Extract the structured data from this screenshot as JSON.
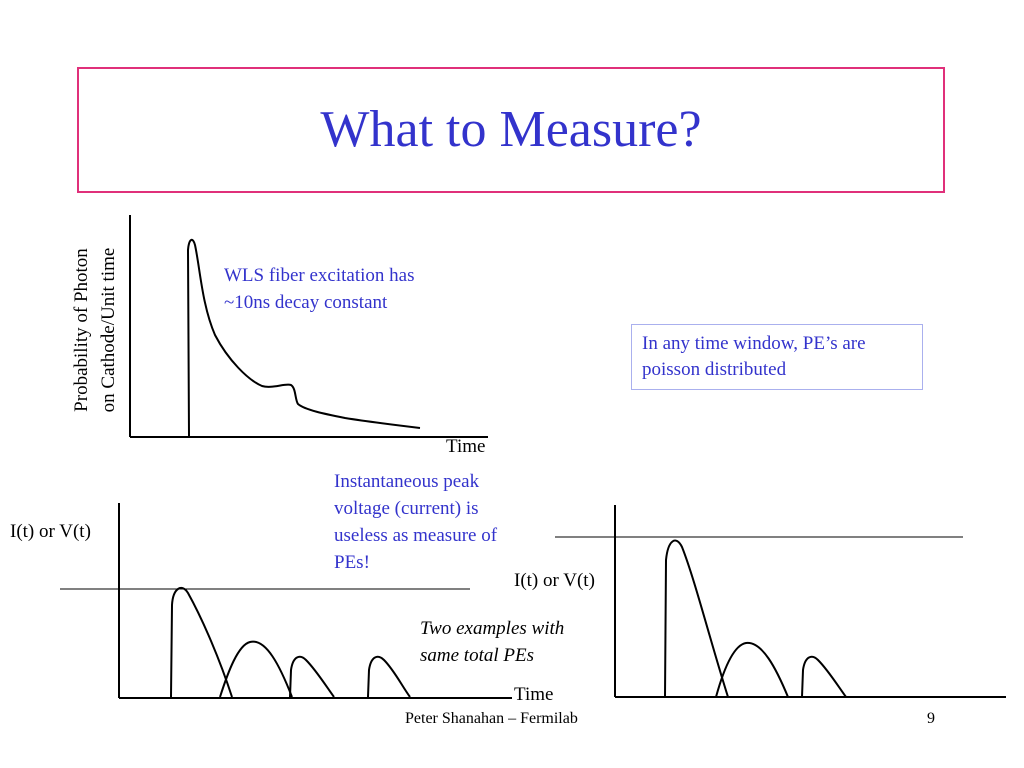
{
  "slide": {
    "title": "What to Measure?",
    "footer_author": "Peter Shanahan – Fermilab",
    "page_number": "9"
  },
  "top_plot": {
    "y_label_line1": "Probability of Photon",
    "y_label_line2": "on Cathode/Unit time",
    "x_label": "Time",
    "note_line1": "WLS fiber excitation has",
    "note_line2": "~10ns decay constant"
  },
  "callout": {
    "line1": "In any time window, PE’s are",
    "line2": "poisson distributed"
  },
  "peak_note": {
    "line1": "Instantaneous peak",
    "line2": "voltage (current) is",
    "line3": "useless as measure of",
    "line4": "PEs!"
  },
  "examples_note": {
    "line1": "Two examples with",
    "line2": "same total PEs"
  },
  "left_plot": {
    "y_label": "I(t) or V(t)",
    "x_label": "Time"
  },
  "right_plot": {
    "y_label": "I(t) or V(t)"
  },
  "colors": {
    "title": "#3333cc",
    "title_border": "#e0307a",
    "annotation": "#3333cc",
    "callout_border": "#aab0ee",
    "lines": "#000000"
  }
}
